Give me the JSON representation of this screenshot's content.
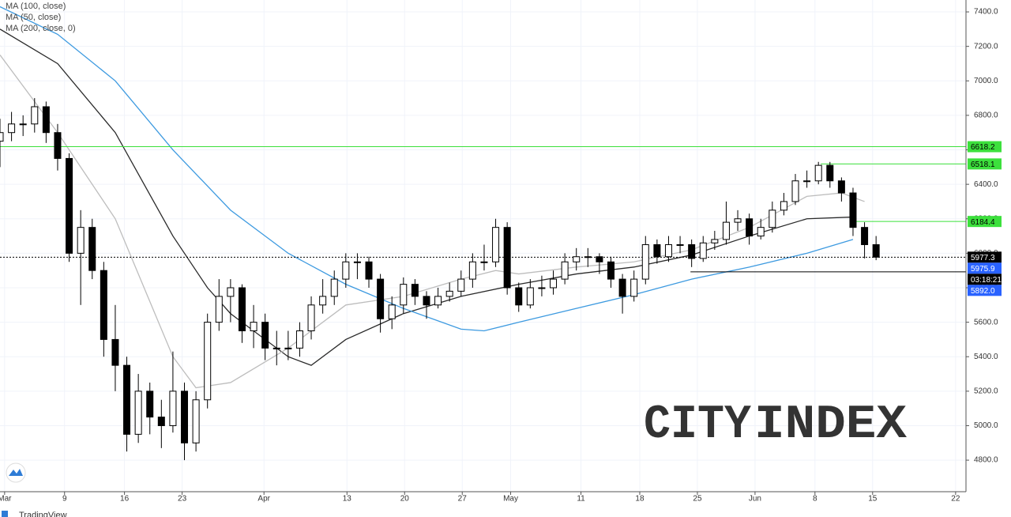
{
  "chart_data": {
    "type": "candlestick",
    "x": [
      0,
      1,
      2,
      3,
      4,
      5,
      6,
      7,
      8,
      9,
      10,
      11,
      12,
      13,
      14,
      15,
      16,
      17,
      18,
      19,
      20,
      21,
      22,
      23,
      24,
      25,
      26,
      27,
      28,
      29,
      30,
      31,
      32,
      33,
      34,
      35,
      36,
      37,
      38,
      39,
      40,
      41,
      42,
      43,
      44,
      45,
      46,
      47,
      48,
      49,
      50,
      51,
      52,
      53,
      54,
      55,
      56,
      57,
      58,
      59,
      60,
      61,
      62,
      63,
      64,
      65,
      66,
      67,
      68,
      69,
      70,
      71,
      72,
      73,
      74,
      75,
      76
    ],
    "open": [
      6650,
      6700,
      6750,
      6750,
      6850,
      6700,
      6550,
      6000,
      6150,
      5900,
      5500,
      5350,
      4950,
      5200,
      5050,
      5000,
      5200,
      4900,
      5150,
      5600,
      5750,
      5800,
      5550,
      5600,
      5450,
      5450,
      5450,
      5550,
      5700,
      5750,
      5850,
      5950,
      5950,
      5850,
      5620,
      5700,
      5820,
      5750,
      5700,
      5750,
      5780,
      5850,
      5950,
      5950,
      6150,
      5800,
      5700,
      5800,
      5800,
      5850,
      5950,
      5980,
      5980,
      5950,
      5850,
      5750,
      5850,
      6050,
      5980,
      6050,
      6050,
      5970,
      6060,
      6080,
      6180,
      6200,
      6100,
      6150,
      6250,
      6300,
      6420,
      6420,
      6510,
      6420,
      6350,
      6150,
      6050
    ],
    "high": [
      6780,
      6820,
      6800,
      6900,
      6880,
      6750,
      6580,
      6250,
      6200,
      5950,
      5700,
      5400,
      5300,
      5250,
      5150,
      5430,
      5250,
      5200,
      5650,
      5850,
      5850,
      5820,
      5700,
      5650,
      5550,
      5550,
      5600,
      5750,
      5850,
      5900,
      6000,
      6000,
      5980,
      5880,
      5750,
      5860,
      5850,
      5780,
      5800,
      5830,
      5900,
      6000,
      6050,
      6200,
      6180,
      5830,
      5850,
      5870,
      5900,
      6000,
      6030,
      6030,
      6000,
      5980,
      5880,
      5900,
      6100,
      6080,
      6100,
      6100,
      6080,
      6100,
      6130,
      6300,
      6250,
      6230,
      6200,
      6300,
      6350,
      6460,
      6480,
      6530,
      6530,
      6440,
      6380,
      6180,
      6100
    ],
    "low": [
      6500,
      6650,
      6680,
      6700,
      6640,
      6480,
      5950,
      5700,
      5850,
      5400,
      5200,
      4850,
      4900,
      4950,
      4870,
      4960,
      4800,
      4850,
      5100,
      5550,
      5600,
      5480,
      5450,
      5380,
      5350,
      5380,
      5400,
      5500,
      5650,
      5700,
      5800,
      5850,
      5800,
      5540,
      5560,
      5650,
      5700,
      5620,
      5680,
      5720,
      5750,
      5800,
      5900,
      5920,
      5760,
      5660,
      5680,
      5750,
      5760,
      5820,
      5900,
      5920,
      5880,
      5800,
      5650,
      5720,
      5820,
      5940,
      5950,
      6000,
      5920,
      5950,
      6020,
      6050,
      6130,
      6050,
      6080,
      6120,
      6220,
      6280,
      6380,
      6400,
      6380,
      6300,
      6100,
      5970,
      5960
    ],
    "close": [
      6700,
      6750,
      6750,
      6850,
      6700,
      6550,
      6000,
      6150,
      5900,
      5500,
      5350,
      4950,
      5200,
      5050,
      5000,
      5200,
      4900,
      5150,
      5600,
      5750,
      5800,
      5550,
      5600,
      5450,
      5450,
      5450,
      5550,
      5700,
      5750,
      5850,
      5950,
      5950,
      5850,
      5620,
      5700,
      5820,
      5750,
      5700,
      5750,
      5780,
      5850,
      5950,
      5950,
      6150,
      5800,
      5700,
      5800,
      5800,
      5850,
      5950,
      5980,
      5980,
      5950,
      5850,
      5750,
      5850,
      6050,
      5980,
      6050,
      6050,
      5970,
      6060,
      6080,
      6180,
      6200,
      6100,
      6150,
      6250,
      6300,
      6420,
      6420,
      6510,
      6420,
      6350,
      6150,
      6050,
      5977.3
    ],
    "series": [
      {
        "name": "MA (100, close)",
        "color": "#2a2a2a",
        "x": [
          0,
          5,
          10,
          15,
          18,
          20,
          25,
          27,
          30,
          35,
          40,
          45,
          50,
          55,
          60,
          65,
          70,
          74
        ],
        "values": [
          7300,
          7100,
          6700,
          6100,
          5800,
          5650,
          5400,
          5350,
          5500,
          5650,
          5750,
          5820,
          5880,
          5920,
          5990,
          6100,
          6200,
          6210
        ]
      },
      {
        "name": "MA (50, close)",
        "color": "#bdbdbd",
        "x": [
          0,
          5,
          10,
          15,
          17,
          20,
          25,
          30,
          35,
          40,
          43,
          45,
          50,
          55,
          60,
          65,
          70,
          73,
          75
        ],
        "values": [
          7150,
          6700,
          6200,
          5400,
          5220,
          5250,
          5450,
          5700,
          5750,
          5850,
          5900,
          5880,
          5920,
          5950,
          6020,
          6150,
          6330,
          6350,
          6300
        ]
      },
      {
        "name": "MA (200, close, 0)",
        "color": "#3d9ae0",
        "x": [
          0,
          5,
          10,
          15,
          20,
          25,
          30,
          35,
          40,
          42,
          45,
          50,
          55,
          60,
          65,
          70,
          74
        ],
        "values": [
          7430,
          7270,
          7000,
          6600,
          6250,
          6000,
          5820,
          5680,
          5560,
          5550,
          5600,
          5680,
          5760,
          5850,
          5920,
          6000,
          6080
        ]
      }
    ],
    "price_lines": [
      {
        "value": 6618.2,
        "color": "#3ce03c",
        "style": "solid",
        "x_start": 0
      },
      {
        "value": 6518.1,
        "color": "#3ce03c",
        "style": "solid",
        "x_start": 71.2
      },
      {
        "value": 6184.4,
        "color": "#3ce03c",
        "style": "solid",
        "x_start": 74
      },
      {
        "value": 5977.3,
        "color": "#000000",
        "style": "dotted",
        "x_start": 0
      },
      {
        "value": 5975.9,
        "color": "#2962ff",
        "style": "none"
      },
      {
        "value": 5892,
        "label": "5892.0",
        "color": "#2962ff",
        "style": "solid",
        "x_start": 59.9,
        "line_color": "#000000"
      }
    ],
    "countdown": "03:18:21",
    "xlim": [
      0,
      83.8
    ],
    "xticks": [
      {
        "value": 0.4,
        "label": "Mar"
      },
      {
        "value": 5.6,
        "label": "9"
      },
      {
        "value": 10.8,
        "label": "16"
      },
      {
        "value": 15.8,
        "label": "23"
      },
      {
        "value": 22.9,
        "label": "Apr"
      },
      {
        "value": 30.1,
        "label": "13"
      },
      {
        "value": 35.1,
        "label": "20"
      },
      {
        "value": 40.1,
        "label": "27"
      },
      {
        "value": 44.3,
        "label": "May"
      },
      {
        "value": 50.4,
        "label": "11"
      },
      {
        "value": 55.5,
        "label": "18"
      },
      {
        "value": 60.5,
        "label": "25"
      },
      {
        "value": 65.5,
        "label": "Jun"
      },
      {
        "value": 70.7,
        "label": "8"
      },
      {
        "value": 75.7,
        "label": "15"
      },
      {
        "value": 82.9,
        "label": "22"
      }
    ],
    "ylim": [
      4617,
      7469
    ],
    "yticks": [
      {
        "value": 4800,
        "label": "4800.0"
      },
      {
        "value": 5000,
        "label": "5000.0"
      },
      {
        "value": 5200,
        "label": "5200.0"
      },
      {
        "value": 5400,
        "label": "5400.0"
      },
      {
        "value": 5600,
        "label": "5600.0"
      },
      {
        "value": 5800,
        "label": "5800.0"
      },
      {
        "value": 6000,
        "label": "6000.0"
      },
      {
        "value": 6200,
        "label": "6200.0"
      },
      {
        "value": 6400,
        "label": "6400.0"
      },
      {
        "value": 6600,
        "label": "6600.0"
      },
      {
        "value": 6800,
        "label": "6800.0"
      },
      {
        "value": 7000,
        "label": "7000.0"
      },
      {
        "value": 7200,
        "label": "7200.0"
      },
      {
        "value": 7400,
        "label": "7400.0"
      }
    ],
    "grid": true,
    "watermark": {
      "left": "CITY",
      "right": "INDEX"
    },
    "footer": "TradingView"
  }
}
